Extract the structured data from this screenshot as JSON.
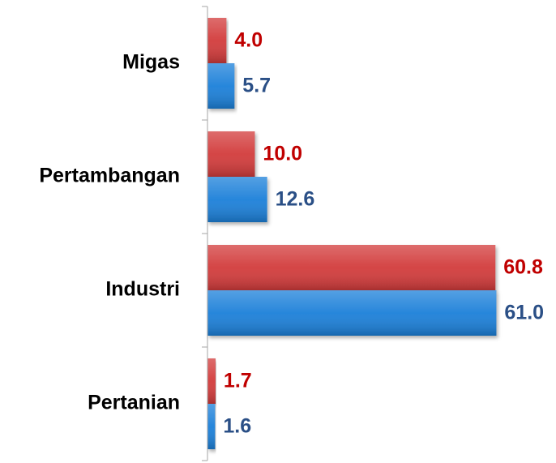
{
  "chart_data": {
    "type": "hbar",
    "categories": [
      "Migas",
      "Pertambangan",
      "Industri",
      "Pertanian"
    ],
    "series": [
      {
        "color": "#d23b3b",
        "label_color": "#c00000",
        "values": [
          4.0,
          10.0,
          60.8,
          1.7
        ],
        "value_labels": [
          "4.0",
          "10.0",
          "60.8",
          "1.7"
        ]
      },
      {
        "color": "#1c80d9",
        "label_color": "#2a4f86",
        "values": [
          5.7,
          12.6,
          61.0,
          1.6
        ],
        "value_labels": [
          "5.7",
          "12.6",
          "61.0",
          "1.6"
        ]
      }
    ],
    "xlim": [
      0,
      70
    ]
  }
}
